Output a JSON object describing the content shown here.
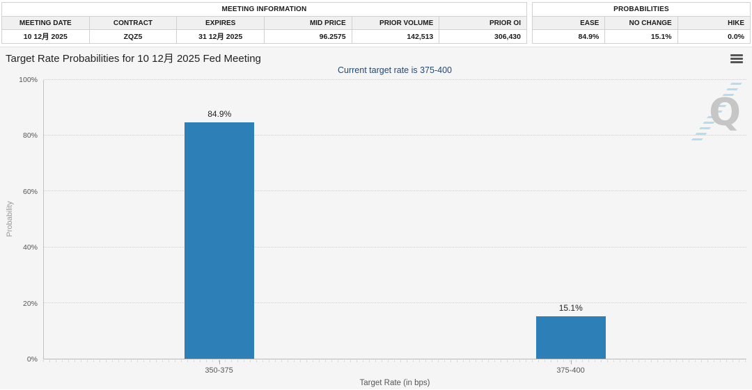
{
  "meeting_info": {
    "caption": "MEETING INFORMATION",
    "columns": [
      "MEETING DATE",
      "CONTRACT",
      "EXPIRES",
      "MID PRICE",
      "PRIOR VOLUME",
      "PRIOR OI"
    ],
    "values": [
      "10 12月 2025",
      "ZQZ5",
      "31 12月 2025",
      "96.2575",
      "142,513",
      "306,430"
    ],
    "aligns": [
      "center",
      "center",
      "center",
      "right",
      "right",
      "right"
    ]
  },
  "probabilities": {
    "caption": "PROBABILITIES",
    "columns": [
      "EASE",
      "NO CHANGE",
      "HIKE"
    ],
    "values": [
      "84.9%",
      "15.1%",
      "0.0%"
    ],
    "aligns": [
      "right",
      "right",
      "right"
    ]
  },
  "chart": {
    "title": "Target Rate Probabilities for 10 12月 2025 Fed Meeting",
    "subtitle": "Current target rate is 375-400"
  },
  "chart_data": {
    "type": "bar",
    "categories": [
      "350-375",
      "375-400"
    ],
    "values": [
      84.9,
      15.1
    ],
    "value_labels": [
      "84.9%",
      "15.1%"
    ],
    "title": "Target Rate Probabilities for 10 12月 2025 Fed Meeting",
    "subtitle": "Current target rate is 375-400",
    "xlabel": "Target Rate (in bps)",
    "ylabel": "Probability",
    "ylim": [
      0,
      100
    ],
    "yticks": [
      {
        "value": 0,
        "label": "0%"
      },
      {
        "value": 20,
        "label": "20%"
      },
      {
        "value": 40,
        "label": "40%"
      },
      {
        "value": 60,
        "label": "60%"
      },
      {
        "value": 80,
        "label": "80%"
      },
      {
        "value": 100,
        "label": "100%"
      }
    ],
    "grid": "horizontal-dotted",
    "legend": "none",
    "bar_color": "#2d7fb8"
  },
  "watermark": {
    "letter": "Q"
  },
  "colors": {
    "bar": "#2d7fb8",
    "subtitle_text": "#26486e",
    "watermark_stripes": "#b5ddf0"
  }
}
